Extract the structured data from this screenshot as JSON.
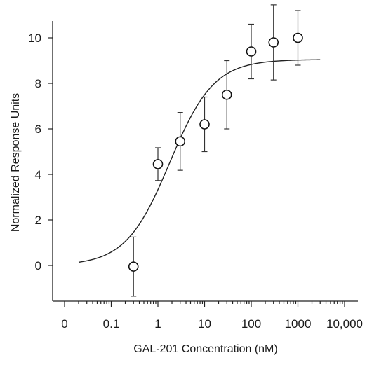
{
  "chart_data": {
    "type": "scatter",
    "xlabel": "GAL-201 Concentration (nM)",
    "ylabel": "Normalized Response Units",
    "x_scale": "log",
    "x_ticks": [
      "0",
      "0.1",
      "1",
      "10",
      "100",
      "1000",
      "10,000"
    ],
    "y_ticks": [
      0,
      2,
      4,
      6,
      8,
      10
    ],
    "ylim": [
      -1.3,
      10.9
    ],
    "grid": false,
    "points": [
      {
        "x": 0.3,
        "y": -0.05,
        "err": 1.3
      },
      {
        "x": 1,
        "y": 4.45,
        "err": 0.72
      },
      {
        "x": 3,
        "y": 5.45,
        "err": 1.27
      },
      {
        "x": 10,
        "y": 6.2,
        "err": 1.2
      },
      {
        "x": 30,
        "y": 7.5,
        "err": 1.5
      },
      {
        "x": 100,
        "y": 9.4,
        "err": 1.2
      },
      {
        "x": 300,
        "y": 9.8,
        "err": 1.65
      },
      {
        "x": 1000,
        "y": 10.0,
        "err": 1.2
      }
    ],
    "fit_curve": {
      "model": "sigmoidal dose-response",
      "bottom": 0.0,
      "top": 9.05,
      "ec50": 1.8,
      "hill": 0.92,
      "x_range": [
        0.02,
        3000
      ]
    }
  }
}
